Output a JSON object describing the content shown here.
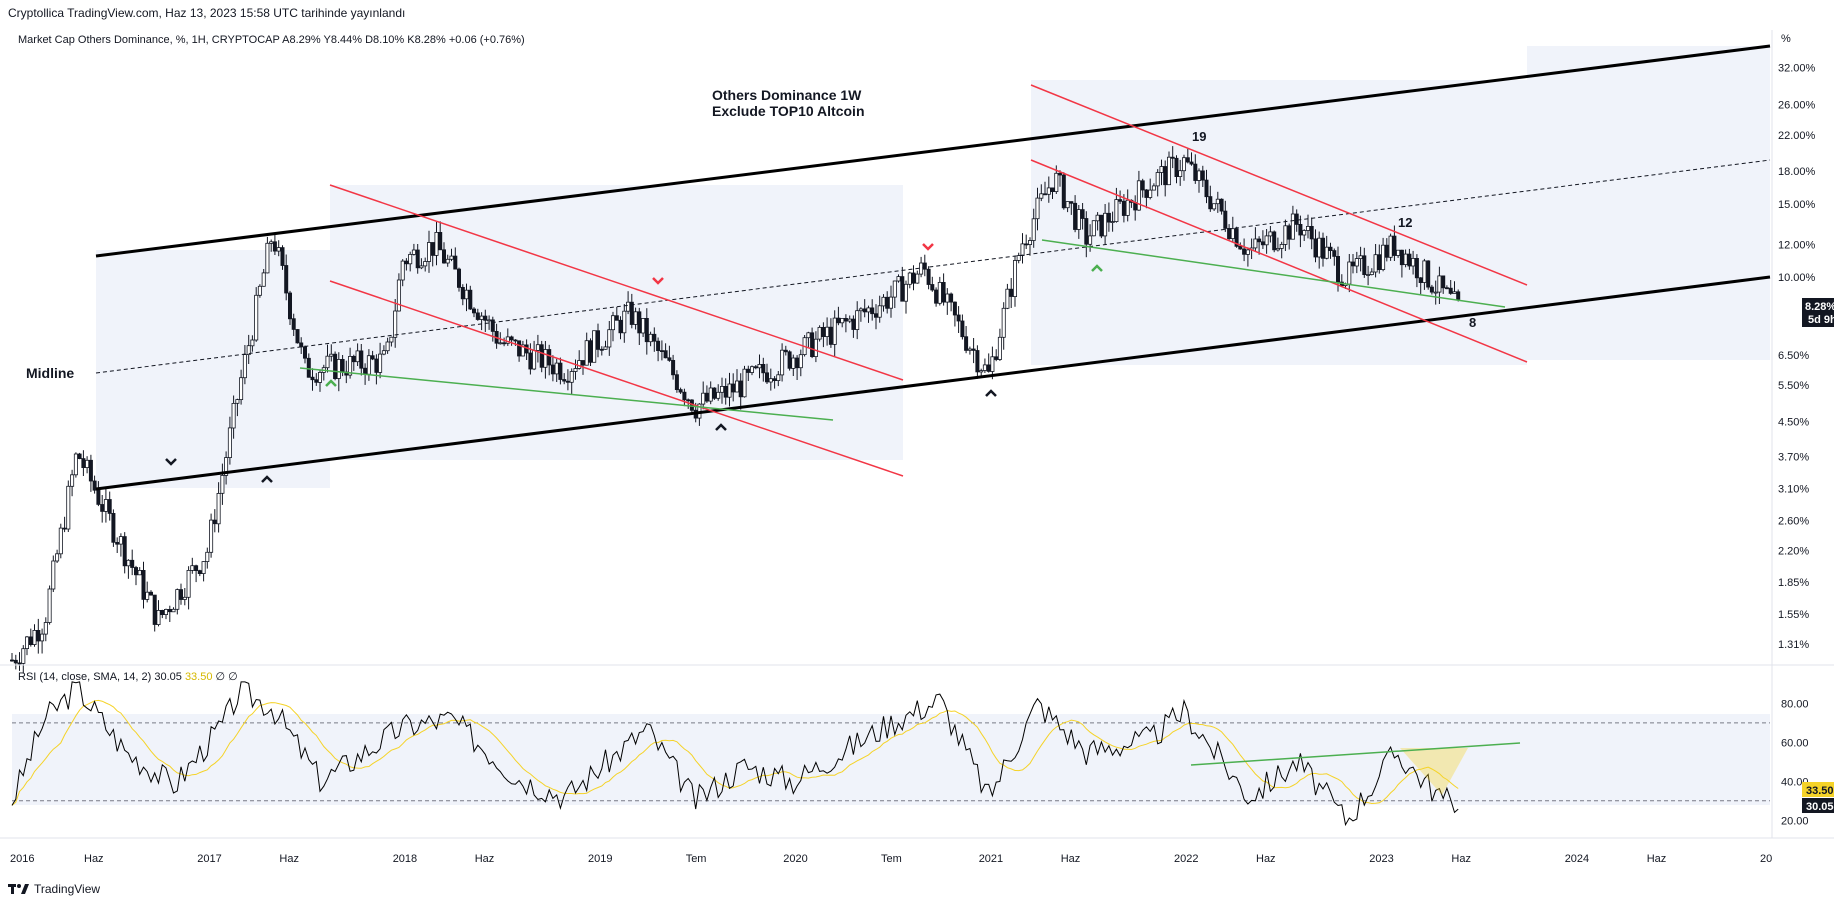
{
  "header": {
    "published": "Cryptollica TradingView.com, Haz 13, 2023 15:58 UTC tarihinde yayınlandı"
  },
  "legend": {
    "symbol": "Market Cap Others Dominance, %, 1H, CRYPTOCAP",
    "ohlc": "A8.29%  Y8.44%  D8.10%  K8.28%  +0.06 (+0.76%)"
  },
  "annotations": {
    "title_line1": "Others Dominance 1W",
    "title_line2": "Exclude TOP10 Altcoin",
    "midline": "Midline",
    "n19": "19",
    "n12": "12",
    "n8": "8"
  },
  "price_axis": {
    "unit": "%",
    "ticks": [
      "32.00%",
      "26.00%",
      "22.00%",
      "18.00%",
      "15.00%",
      "12.00%",
      "10.00%",
      "8.28%",
      "6.50%",
      "5.50%",
      "4.50%",
      "3.70%",
      "3.10%",
      "2.60%",
      "2.20%",
      "1.85%",
      "1.55%",
      "1.31%"
    ],
    "last_price": "8.28%",
    "countdown": "5d 9h"
  },
  "rsi": {
    "legend_text": "RSI (14, close, SMA, 14, 2)",
    "rsi_value": "30.05",
    "sma_value": "33.50",
    "tail": "∅  ∅",
    "ticks": [
      "80.00",
      "60.00",
      "40.00",
      "20.00"
    ],
    "badge_rsi": "30.05",
    "badge_sma": "33.50"
  },
  "time_axis": [
    "2016",
    "Haz",
    "2017",
    "Haz",
    "2018",
    "Haz",
    "2019",
    "Tem",
    "2020",
    "Tem",
    "2021",
    "Haz",
    "2022",
    "Haz",
    "2023",
    "Haz",
    "2024",
    "Haz",
    "20"
  ],
  "footer": {
    "brand": "TradingView"
  },
  "colors": {
    "up": "#131722",
    "channel": "#000000",
    "red": "#f23645",
    "green": "#4caf50",
    "rsi": "#000000",
    "rsi_sma": "#f5d328",
    "band": "#f0f3fa"
  },
  "chart_data": {
    "type": "candlestick",
    "title": "Others Dominance 1W",
    "subtitle": "Exclude TOP10 Altcoin",
    "ylabel": "%",
    "ylim": [
      1.2,
      36
    ],
    "scale": "log",
    "anchor_points": [
      {
        "date": "2016-01",
        "value": 1.2
      },
      {
        "date": "2016-03",
        "value": 1.5
      },
      {
        "date": "2016-05",
        "value": 3.8
      },
      {
        "date": "2016-07",
        "value": 2.6
      },
      {
        "date": "2016-10",
        "value": 1.5
      },
      {
        "date": "2017-01",
        "value": 2.2
      },
      {
        "date": "2017-03",
        "value": 5.5
      },
      {
        "date": "2017-05",
        "value": 12.8
      },
      {
        "date": "2017-07",
        "value": 6.0
      },
      {
        "date": "2017-12",
        "value": 6.3
      },
      {
        "date": "2018-01",
        "value": 11.0
      },
      {
        "date": "2018-03",
        "value": 12.0
      },
      {
        "date": "2018-07",
        "value": 7.0
      },
      {
        "date": "2018-11",
        "value": 6.0
      },
      {
        "date": "2019-03",
        "value": 8.2
      },
      {
        "date": "2019-07",
        "value": 4.9
      },
      {
        "date": "2019-09",
        "value": 5.3
      },
      {
        "date": "2020-01",
        "value": 6.5
      },
      {
        "date": "2020-07",
        "value": 9.0
      },
      {
        "date": "2020-09",
        "value": 10.5
      },
      {
        "date": "2021-01",
        "value": 5.8
      },
      {
        "date": "2021-03",
        "value": 12.0
      },
      {
        "date": "2021-05",
        "value": 17.5
      },
      {
        "date": "2021-07",
        "value": 12.5
      },
      {
        "date": "2021-11",
        "value": 17.0
      },
      {
        "date": "2022-01",
        "value": 19.0
      },
      {
        "date": "2022-05",
        "value": 11.5
      },
      {
        "date": "2022-08",
        "value": 13.5
      },
      {
        "date": "2022-11",
        "value": 10.0
      },
      {
        "date": "2023-02",
        "value": 12.0
      },
      {
        "date": "2023-06",
        "value": 8.28
      }
    ],
    "rsi_series": {
      "name": "RSI (14, close, SMA, 14, 2)",
      "anchor_points": [
        {
          "date": "2016-01",
          "value": 30
        },
        {
          "date": "2016-03",
          "value": 72
        },
        {
          "date": "2016-05",
          "value": 88
        },
        {
          "date": "2016-08",
          "value": 55
        },
        {
          "date": "2016-11",
          "value": 38
        },
        {
          "date": "2017-02",
          "value": 70
        },
        {
          "date": "2017-03",
          "value": 86
        },
        {
          "date": "2017-05",
          "value": 78
        },
        {
          "date": "2017-08",
          "value": 40
        },
        {
          "date": "2018-01",
          "value": 68
        },
        {
          "date": "2018-04",
          "value": 72
        },
        {
          "date": "2018-08",
          "value": 42
        },
        {
          "date": "2018-11",
          "value": 32
        },
        {
          "date": "2019-04",
          "value": 67
        },
        {
          "date": "2019-07",
          "value": 30
        },
        {
          "date": "2019-10",
          "value": 48
        },
        {
          "date": "2020-01",
          "value": 40
        },
        {
          "date": "2020-07",
          "value": 70
        },
        {
          "date": "2020-10",
          "value": 82
        },
        {
          "date": "2021-01",
          "value": 32
        },
        {
          "date": "2021-04",
          "value": 80
        },
        {
          "date": "2021-07",
          "value": 55
        },
        {
          "date": "2021-11",
          "value": 62
        },
        {
          "date": "2022-01",
          "value": 76
        },
        {
          "date": "2022-05",
          "value": 32
        },
        {
          "date": "2022-08",
          "value": 50
        },
        {
          "date": "2022-11",
          "value": 20
        },
        {
          "date": "2023-02",
          "value": 55
        },
        {
          "date": "2023-05",
          "value": 30
        },
        {
          "date": "2023-06",
          "value": 30.05
        }
      ],
      "ylim": [
        15,
        92
      ]
    },
    "rsi_sma_last": 33.5,
    "rsi_levels": [
      70,
      30
    ]
  }
}
